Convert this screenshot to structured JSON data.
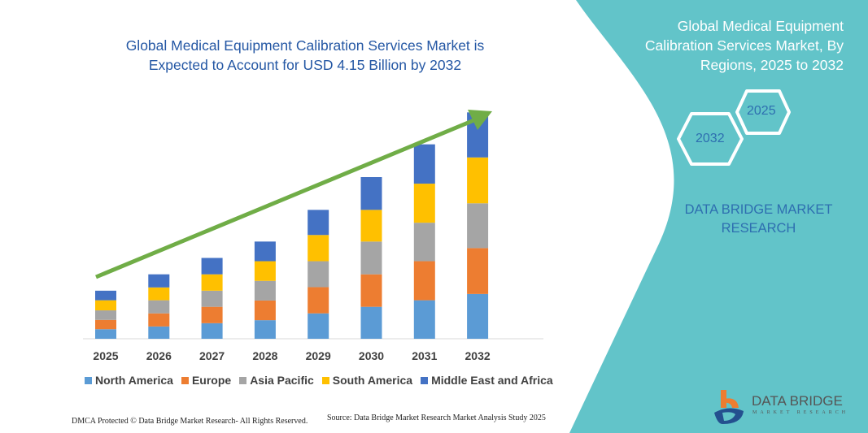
{
  "title": "Global Medical Equipment Calibration Services Market is Expected to Account for USD 4.15 Billion by 2032",
  "side_panel": {
    "title": "Global Medical Equipment Calibration Services Market, By Regions, 2025 to 2032",
    "hex_start": "2025",
    "hex_end": "2032",
    "brand": "DATA BRIDGE MARKET RESEARCH"
  },
  "footer": {
    "dmca": "DMCA Protected © Data Bridge Market Research-  All Rights Reserved.",
    "source": "Source: Data Bridge Market Research  Market Analysis Study 2025"
  },
  "logo": {
    "name": "DATA BRIDGE",
    "tagline": "MARKET RESEARCH"
  },
  "colors": {
    "teal_panel": "#62c4c9",
    "arrow": "#70ad47",
    "title": "#2457a4"
  },
  "chart_data": {
    "type": "bar",
    "stacked": true,
    "categories": [
      "2025",
      "2026",
      "2027",
      "2028",
      "2029",
      "2030",
      "2031",
      "2032"
    ],
    "series": [
      {
        "name": "North America",
        "color": "#5b9bd5",
        "values": [
          3.5,
          4.5,
          5.7,
          6.8,
          9.3,
          11.7,
          14.1,
          16.4
        ]
      },
      {
        "name": "Europe",
        "color": "#ed7d31",
        "values": [
          3.4,
          4.8,
          6.0,
          7.2,
          9.6,
          11.9,
          14.3,
          16.8
        ]
      },
      {
        "name": "Asia Pacific",
        "color": "#a5a5a5",
        "values": [
          3.5,
          4.8,
          5.9,
          7.2,
          9.5,
          12.0,
          14.1,
          16.4
        ]
      },
      {
        "name": "South America",
        "color": "#ffc000",
        "values": [
          3.7,
          4.7,
          6.0,
          7.2,
          9.6,
          11.6,
          14.3,
          16.8
        ]
      },
      {
        "name": "Middle East and Africa",
        "color": "#4472c4",
        "values": [
          3.5,
          4.8,
          6.0,
          7.2,
          9.2,
          12.0,
          14.4,
          16.5
        ]
      }
    ],
    "ylim": [
      0,
      83
    ],
    "y_axis_shown": false,
    "grid": false,
    "legend": "bottom",
    "trend_arrow": true
  }
}
